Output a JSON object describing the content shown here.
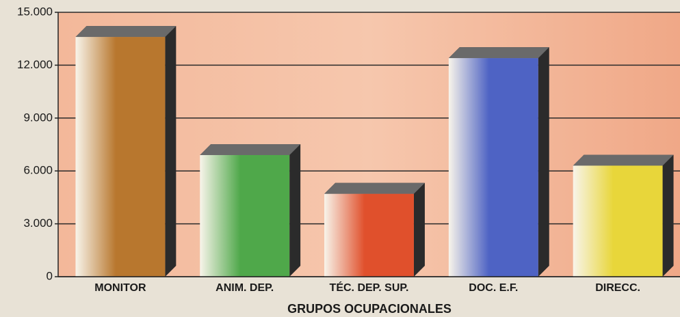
{
  "chart_data": {
    "type": "bar",
    "x_label": "GRUPOS OCUPACIONALES",
    "categories": [
      "MONITOR",
      "ANIM. DEP.",
      "TÉC. DEP. SUP.",
      "DOC. E.F.",
      "DIRECC."
    ],
    "values": [
      13600,
      6900,
      4700,
      12400,
      6300
    ],
    "colors": [
      "#b8772e",
      "#4fa84a",
      "#e0502c",
      "#4e63c4",
      "#e8d63a"
    ],
    "ylim": [
      0,
      15000
    ],
    "yticks": [
      0,
      {
        "value": 3000,
        "label": "3.000"
      },
      {
        "value": 6000,
        "label": "6.000"
      },
      {
        "value": 9000,
        "label": "9.000"
      },
      {
        "value": 12000,
        "label": "12.000"
      },
      {
        "value": 15000,
        "label": "15.000"
      }
    ],
    "grid": true
  }
}
